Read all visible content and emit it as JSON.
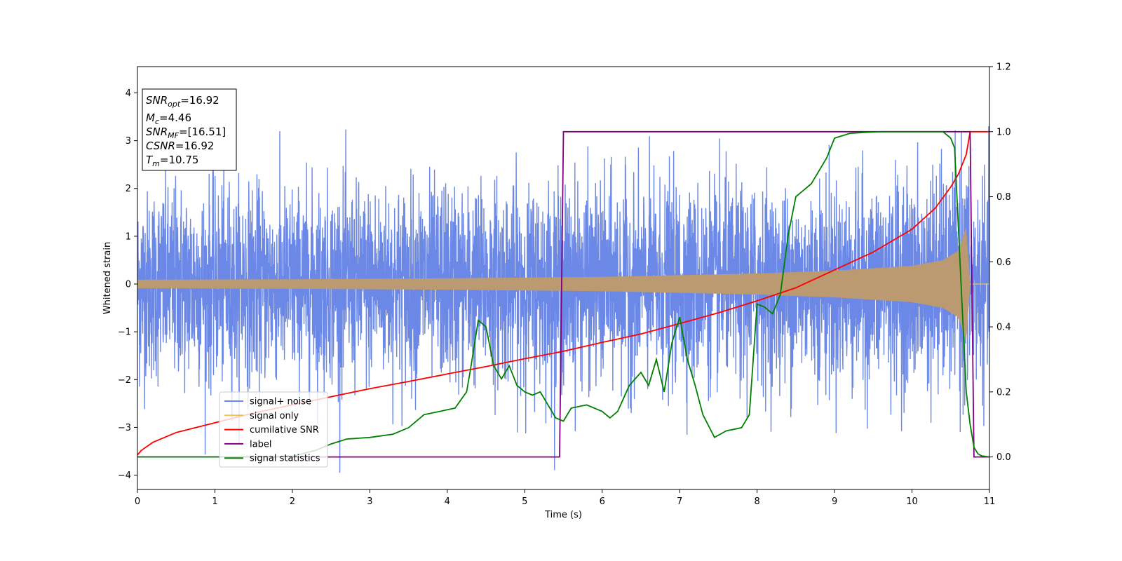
{
  "chart_data": {
    "type": "line",
    "xlabel": "Time (s)",
    "ylabel": "Whitened strain",
    "xlim": [
      0,
      11
    ],
    "ylim_left": [
      -4.3,
      4.55
    ],
    "ylim_right": [
      -0.1,
      1.2
    ],
    "x_ticks": [
      "0",
      "1",
      "2",
      "3",
      "4",
      "5",
      "6",
      "7",
      "8",
      "9",
      "10",
      "11"
    ],
    "y_ticks_left": [
      "−4",
      "−3",
      "−2",
      "−1",
      "0",
      "1",
      "2",
      "3",
      "4"
    ],
    "y_ticks_right": [
      "0.0",
      "0.2",
      "0.4",
      "0.6",
      "0.8",
      "1.0",
      "1.2"
    ],
    "grid": false,
    "legend_position": "lower-left",
    "series": [
      {
        "name": "signal+ noise",
        "axis": "left",
        "color": "#6b88e6",
        "description_values": {
          "x_start": 0,
          "x_end": 11,
          "noise_sigma": 1.0,
          "approx_range": [
            -3.9,
            4.2
          ]
        }
      },
      {
        "name": "signal only",
        "axis": "left",
        "color": "#f0c05a",
        "envelope": {
          "x": [
            0,
            2,
            4,
            6,
            8,
            9,
            10,
            10.4,
            10.6,
            10.7,
            10.75,
            11
          ],
          "amp": [
            0.09,
            0.1,
            0.12,
            0.15,
            0.22,
            0.28,
            0.38,
            0.5,
            0.7,
            1.2,
            0.0,
            0.0
          ]
        }
      },
      {
        "name": "cumilative SNR",
        "axis": "right",
        "color": "#ff0000",
        "x": [
          0,
          0.05,
          0.2,
          0.5,
          1,
          1.5,
          2,
          2.5,
          3,
          3.5,
          4,
          4.5,
          5,
          5.5,
          6,
          6.5,
          7,
          7.5,
          8,
          8.5,
          9,
          9.5,
          10,
          10.3,
          10.5,
          10.6,
          10.7,
          10.75,
          11
        ],
        "y": [
          0.006,
          0.02,
          0.045,
          0.075,
          0.105,
          0.135,
          0.16,
          0.185,
          0.21,
          0.232,
          0.255,
          0.278,
          0.302,
          0.325,
          0.352,
          0.378,
          0.41,
          0.443,
          0.48,
          0.52,
          0.575,
          0.63,
          0.7,
          0.765,
          0.83,
          0.87,
          0.93,
          1.0,
          1.0
        ]
      },
      {
        "name": "label",
        "axis": "right",
        "color": "#800080",
        "x": [
          0,
          5.45,
          5.5,
          10.75,
          10.8,
          11
        ],
        "y": [
          0,
          0,
          1,
          1,
          0,
          0
        ]
      },
      {
        "name": "signal statistics",
        "axis": "right",
        "color": "#008000",
        "x": [
          0,
          1,
          2,
          2.3,
          2.5,
          2.7,
          3,
          3.3,
          3.5,
          3.7,
          3.9,
          4.1,
          4.25,
          4.3,
          4.4,
          4.5,
          4.6,
          4.7,
          4.8,
          4.9,
          5,
          5.1,
          5.2,
          5.3,
          5.4,
          5.5,
          5.6,
          5.8,
          6,
          6.1,
          6.2,
          6.35,
          6.5,
          6.6,
          6.7,
          6.8,
          6.9,
          7.0,
          7.1,
          7.2,
          7.3,
          7.45,
          7.6,
          7.8,
          7.9,
          8.0,
          8.1,
          8.2,
          8.3,
          8.4,
          8.5,
          8.6,
          8.7,
          8.8,
          8.9,
          9.0,
          9.2,
          9.4,
          9.6,
          9.8,
          10.0,
          10.2,
          10.4,
          10.5,
          10.55,
          10.6,
          10.65,
          10.7,
          10.75,
          10.8,
          10.85,
          10.9,
          11
        ],
        "y": [
          0,
          0,
          0.002,
          0.02,
          0.04,
          0.055,
          0.06,
          0.07,
          0.09,
          0.13,
          0.14,
          0.15,
          0.2,
          0.27,
          0.42,
          0.4,
          0.28,
          0.24,
          0.28,
          0.22,
          0.2,
          0.19,
          0.2,
          0.16,
          0.12,
          0.11,
          0.15,
          0.16,
          0.14,
          0.12,
          0.14,
          0.22,
          0.26,
          0.22,
          0.3,
          0.2,
          0.35,
          0.43,
          0.3,
          0.22,
          0.13,
          0.06,
          0.08,
          0.09,
          0.13,
          0.47,
          0.46,
          0.44,
          0.5,
          0.68,
          0.8,
          0.82,
          0.84,
          0.88,
          0.92,
          0.98,
          0.995,
          0.998,
          1.0,
          1.0,
          1.0,
          1.0,
          1.0,
          0.98,
          0.95,
          0.7,
          0.45,
          0.2,
          0.1,
          0.03,
          0.01,
          0.003,
          0
        ]
      }
    ]
  },
  "info_box": {
    "lines": [
      {
        "sym": "SNR",
        "sub": "opt",
        "val": "=16.92"
      },
      {
        "sym": "M",
        "sub": "c",
        "val": "=4.46"
      },
      {
        "sym": "SNR",
        "sub": "MF",
        "val": "=[16.51]"
      },
      {
        "sym": "CSNR",
        "sub": "",
        "val": "=16.92"
      },
      {
        "sym": "T",
        "sub": "m",
        "val": "=10.75"
      }
    ]
  },
  "legend": {
    "items": [
      {
        "label": "signal+ noise",
        "color": "#6b88e6"
      },
      {
        "label": "signal only",
        "color": "#f0c05a"
      },
      {
        "label": "cumilative SNR",
        "color": "#ff0000"
      },
      {
        "label": "label",
        "color": "#800080"
      },
      {
        "label": "signal statistics",
        "color": "#008000"
      }
    ]
  }
}
